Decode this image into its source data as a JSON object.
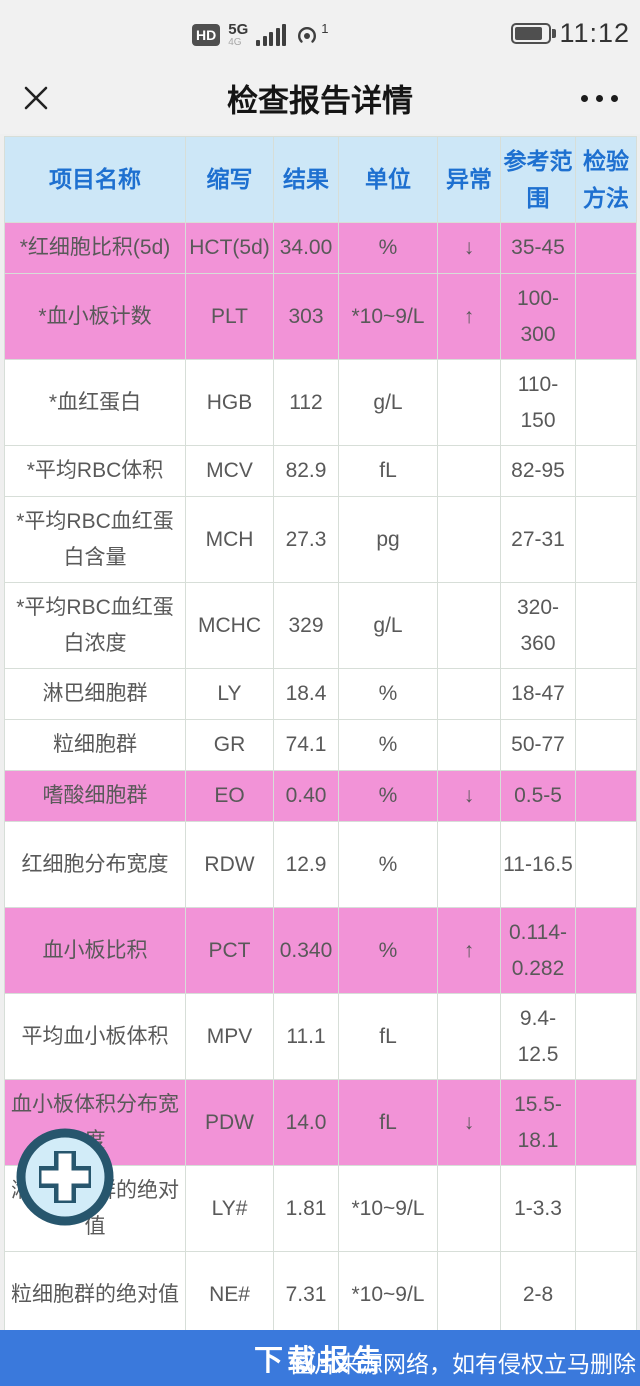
{
  "status_bar": {
    "time": "11:12",
    "hd_badge": "HD",
    "network_type": "5G",
    "network_sub": "4G",
    "volte_count": "1"
  },
  "app_bar": {
    "title": "检查报告详情"
  },
  "table": {
    "columns": [
      "项目名称",
      "缩写",
      "结果",
      "单位",
      "异常",
      "参考范围",
      "检验方法"
    ],
    "rows": [
      {
        "name": "*红细胞比积(5d)",
        "abbr": "HCT(5d)",
        "result": "34.00",
        "unit": "%",
        "flag": "↓",
        "range": "35-45",
        "method": "",
        "pink": true,
        "tall": false
      },
      {
        "name": "*血小板计数",
        "abbr": "PLT",
        "result": "303",
        "unit": "*10~9/L",
        "flag": "↑",
        "range": "100-300",
        "method": "",
        "pink": true,
        "tall": true
      },
      {
        "name": "*血红蛋白",
        "abbr": "HGB",
        "result": "112",
        "unit": "g/L",
        "flag": "",
        "range": "110-150",
        "method": "",
        "pink": false,
        "tall": true
      },
      {
        "name": "*平均RBC体积",
        "abbr": "MCV",
        "result": "82.9",
        "unit": "fL",
        "flag": "",
        "range": "82-95",
        "method": "",
        "pink": false,
        "tall": false
      },
      {
        "name": "*平均RBC血红蛋白含量",
        "abbr": "MCH",
        "result": "27.3",
        "unit": "pg",
        "flag": "",
        "range": "27-31",
        "method": "",
        "pink": false,
        "tall": true
      },
      {
        "name": "*平均RBC血红蛋白浓度",
        "abbr": "MCHC",
        "result": "329",
        "unit": "g/L",
        "flag": "",
        "range": "320-360",
        "method": "",
        "pink": false,
        "tall": true
      },
      {
        "name": "淋巴细胞群",
        "abbr": "LY",
        "result": "18.4",
        "unit": "%",
        "flag": "",
        "range": "18-47",
        "method": "",
        "pink": false,
        "tall": false
      },
      {
        "name": "粒细胞群",
        "abbr": "GR",
        "result": "74.1",
        "unit": "%",
        "flag": "",
        "range": "50-77",
        "method": "",
        "pink": false,
        "tall": false
      },
      {
        "name": "嗜酸细胞群",
        "abbr": "EO",
        "result": "0.40",
        "unit": "%",
        "flag": "↓",
        "range": "0.5-5",
        "method": "",
        "pink": true,
        "tall": false
      },
      {
        "name": "红细胞分布宽度",
        "abbr": "RDW",
        "result": "12.9",
        "unit": "%",
        "flag": "",
        "range": "11-16.5",
        "method": "",
        "pink": false,
        "tall": true
      },
      {
        "name": "血小板比积",
        "abbr": "PCT",
        "result": "0.340",
        "unit": "%",
        "flag": "↑",
        "range": "0.114-0.282",
        "method": "",
        "pink": true,
        "tall": true
      },
      {
        "name": "平均血小板体积",
        "abbr": "MPV",
        "result": "11.1",
        "unit": "fL",
        "flag": "",
        "range": "9.4-12.5",
        "method": "",
        "pink": false,
        "tall": true
      },
      {
        "name": "血小板体积分布宽度",
        "abbr": "PDW",
        "result": "14.0",
        "unit": "fL",
        "flag": "↓",
        "range": "15.5-18.1",
        "method": "",
        "pink": true,
        "tall": true
      },
      {
        "name": "淋巴细胞群的绝对值",
        "abbr": "LY#",
        "result": "1.81",
        "unit": "*10~9/L",
        "flag": "",
        "range": "1-3.3",
        "method": "",
        "pink": false,
        "tall": true
      },
      {
        "name": "粒细胞群的绝对值",
        "abbr": "NE#",
        "result": "7.31",
        "unit": "*10~9/L",
        "flag": "",
        "range": "2-8",
        "method": "",
        "pink": false,
        "tall": true
      }
    ]
  },
  "footer": {
    "download_label": "下载报告",
    "watermark": "图片来源网络，如有侵权立马删除"
  },
  "colors": {
    "abnormal_row_pink": "#f293d7",
    "header_bg_blue": "#cde7f7",
    "header_text_blue": "#1e70d0",
    "download_bar_blue": "#3a79dc",
    "fab_ring": "#27566d",
    "fab_fill": "#d2ecf8"
  }
}
